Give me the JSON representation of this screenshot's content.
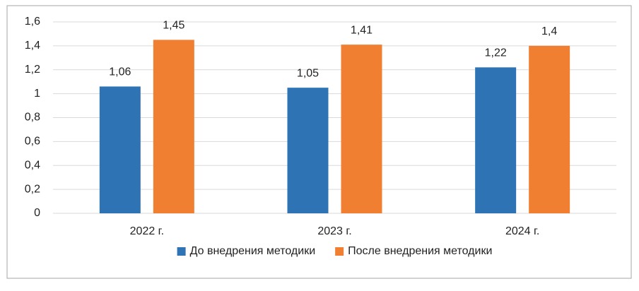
{
  "chart_data": {
    "type": "bar",
    "categories": [
      "2022 г.",
      "2023 г.",
      "2024 г."
    ],
    "series": [
      {
        "name": "До внедрения методики",
        "color": "#2e74b5",
        "values": [
          1.06,
          1.05,
          1.22
        ],
        "value_labels": [
          "1,06",
          "1,05",
          "1,22"
        ]
      },
      {
        "name": "После внедрения методики",
        "color": "#f07f31",
        "values": [
          1.45,
          1.41,
          1.4
        ],
        "value_labels": [
          "1,45",
          "1,41",
          "1,4"
        ]
      }
    ],
    "ylim": [
      0,
      1.6
    ],
    "yticks": [
      0,
      {
        "value": 0.2,
        "label": "0,2"
      },
      {
        "value": 0.4,
        "label": "0,4"
      },
      {
        "value": 0.6,
        "label": "0,6"
      },
      {
        "value": 0.8,
        "label": "0,8"
      },
      1,
      {
        "value": 1.2,
        "label": "1,2"
      },
      {
        "value": 1.4,
        "label": "1,4"
      },
      {
        "value": 1.6,
        "label": "1,6"
      }
    ],
    "grid": true,
    "legend": "bottom"
  }
}
